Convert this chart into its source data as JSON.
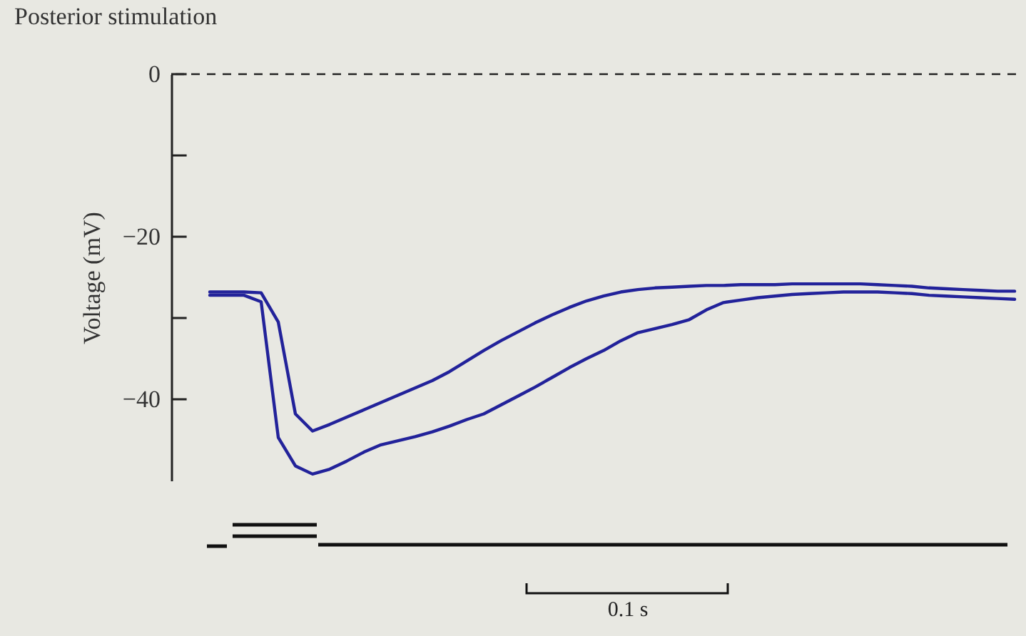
{
  "chart_data": {
    "type": "line",
    "title": "Posterior stimulation",
    "ylabel": "Voltage (mV)",
    "categories": [
      null,
      null,
      null,
      null,
      null,
      null,
      null,
      null,
      null,
      null,
      null,
      null,
      null,
      null,
      null,
      null,
      null,
      null,
      null,
      null,
      null,
      null,
      null,
      null,
      null,
      null,
      null,
      null,
      null,
      null,
      null,
      null,
      null,
      null,
      null,
      null,
      null,
      null,
      null,
      null,
      null,
      null,
      null,
      null,
      null,
      null,
      null,
      null
    ],
    "series": [
      {
        "color": "#22229a",
        "values": [
          -26.8,
          -26.8,
          -26.8,
          -26.9,
          -30.5,
          -41.8,
          -43.9,
          -43.1,
          -42.2,
          -41.3,
          -40.4,
          -39.5,
          -38.6,
          -37.7,
          -36.6,
          -35.3,
          -34.0,
          -32.8,
          -31.7,
          -30.6,
          -29.6,
          -28.7,
          -27.9,
          -27.3,
          -26.8,
          -26.5,
          -26.3,
          -26.2,
          -26.1,
          -26.0,
          -26.0,
          -25.9,
          -25.9,
          -25.9,
          -25.8,
          -25.8,
          -25.8,
          -25.8,
          -25.8,
          -25.9,
          -26.0,
          -26.1,
          -26.3,
          -26.4,
          -26.5,
          -26.6,
          -26.7,
          -26.7
        ]
      },
      {
        "color": "#22229a",
        "values": [
          -27.2,
          -27.2,
          -27.2,
          -28.0,
          -44.7,
          -48.2,
          -49.2,
          -48.6,
          -47.6,
          -46.5,
          -45.6,
          -45.1,
          -44.6,
          -44.0,
          -43.3,
          -42.5,
          -41.8,
          -40.7,
          -39.6,
          -38.5,
          -37.3,
          -36.1,
          -35.0,
          -34.0,
          -32.8,
          -31.8,
          -31.3,
          -30.8,
          -30.2,
          -29.0,
          -28.1,
          -27.8,
          -27.5,
          -27.3,
          -27.1,
          -27.0,
          -26.9,
          -26.8,
          -26.8,
          -26.8,
          -26.9,
          -27.0,
          -27.2,
          -27.3,
          -27.4,
          -27.5,
          -27.6,
          -27.7
        ]
      }
    ],
    "ylim": [
      -50,
      0
    ],
    "yticks": [
      0,
      {
        "value": -10,
        "label": null
      },
      -20,
      {
        "value": -30,
        "label": null
      },
      -40
    ],
    "ref_lines": [
      {
        "axis": "y",
        "value": 0,
        "line_style": "dashed",
        "color": "#222222"
      }
    ],
    "annotations": [
      "0.1 s"
    ],
    "grid": false,
    "marker": "none",
    "line_style": "solid"
  }
}
